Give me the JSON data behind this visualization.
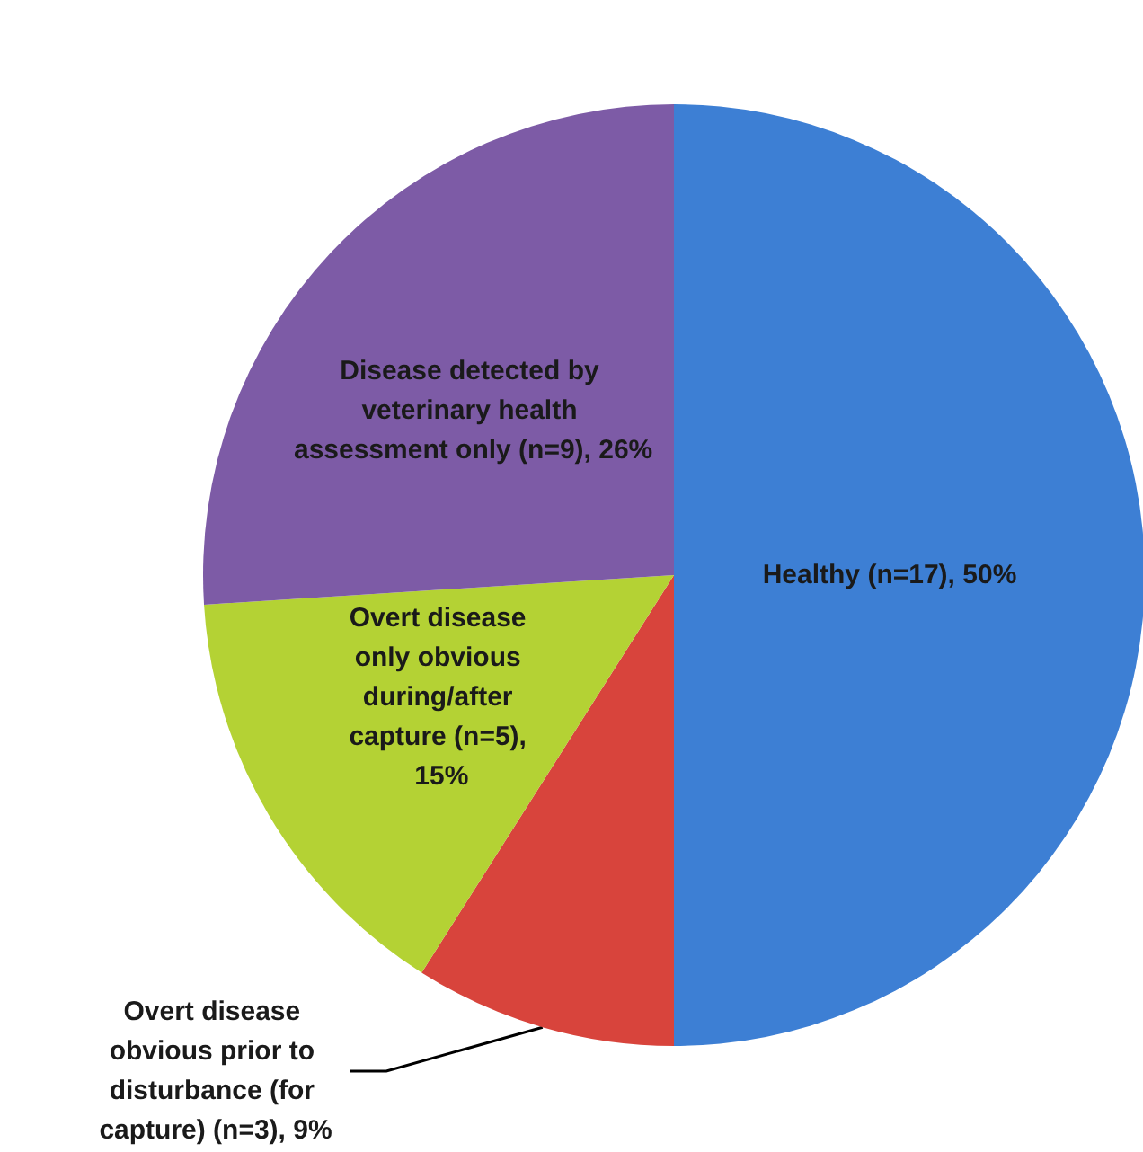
{
  "chart_data": {
    "type": "pie",
    "categories": [
      "Healthy (n=17), 50%",
      "Overt disease obvious prior to disturbance (for capture) (n=3), 9%",
      "Overt disease only obvious during/after capture (n=5), 15%",
      "Disease detected by veterinary health assessment only (n=9), 26%"
    ],
    "values": [
      50,
      9,
      15,
      26
    ],
    "colors": [
      "#3d7fd4",
      "#d8443c",
      "#b4d234",
      "#7d5ba6"
    ],
    "legend": false
  }
}
